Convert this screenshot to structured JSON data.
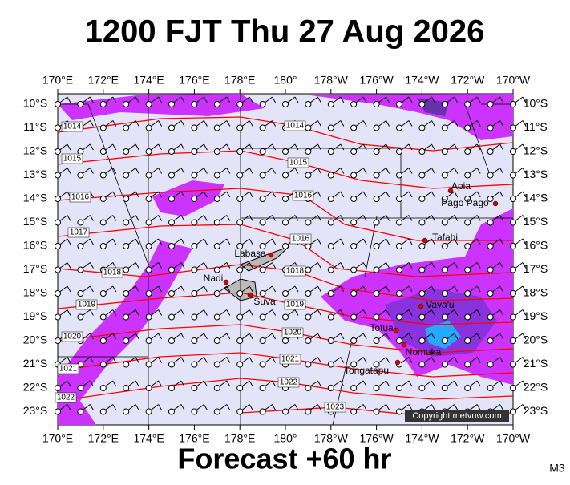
{
  "header": {
    "title": "1200 FJT Thu 27 Aug 2026"
  },
  "footer": {
    "forecast": "Forecast +60 hr",
    "code": "M3"
  },
  "map": {
    "lon_labels": [
      "170°E",
      "172°E",
      "174°E",
      "176°E",
      "178°E",
      "180°",
      "178°W",
      "176°W",
      "174°W",
      "172°W",
      "170°W"
    ],
    "lat_labels": [
      "10°S",
      "11°S",
      "12°S",
      "13°S",
      "14°S",
      "15°S",
      "16°S",
      "17°S",
      "18°S",
      "19°S",
      "20°S",
      "21°S",
      "22°S",
      "23°S"
    ],
    "isobar_labels": [
      "1014",
      "1014",
      "1015",
      "1015",
      "1016",
      "1016",
      "1017",
      "1016",
      "1018",
      "1018",
      "1019",
      "1019",
      "1020",
      "1020",
      "1021",
      "1021",
      "1022",
      "1022",
      "1023"
    ],
    "places": [
      "Apia",
      "Pago Pago",
      "Tafahi",
      "Labasa",
      "Nadi",
      "Suva",
      "Vava'u",
      "Tofua",
      "Nomuka",
      "Tongatapu"
    ],
    "copyright": "Copyright metvuw.com"
  }
}
